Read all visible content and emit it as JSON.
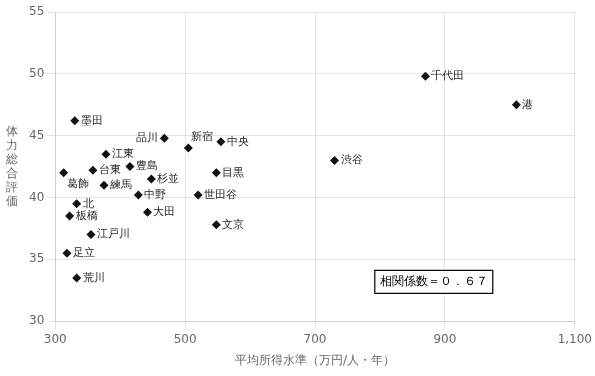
{
  "chart_data": {
    "type": "scatter",
    "x": [
      870,
      1010,
      330,
      555,
      505,
      468,
      378,
      415,
      730,
      548,
      358,
      313,
      448,
      375,
      520,
      333,
      428,
      442,
      322,
      548,
      318,
      355,
      333
    ],
    "values": [
      49.8,
      47.5,
      46.2,
      44.5,
      44.0,
      44.8,
      43.5,
      42.5,
      43.0,
      42.0,
      42.2,
      42.0,
      41.5,
      41.0,
      40.2,
      39.5,
      40.2,
      38.8,
      38.5,
      37.8,
      35.5,
      37.0,
      33.5
    ],
    "labels": [
      "千代田",
      "港",
      "墨田",
      "中央",
      "新宿",
      "品川",
      "江東",
      "豊島",
      "渋谷",
      "目黒",
      "台東",
      "葛飾",
      "杉並",
      "練馬",
      "世田谷",
      "北",
      "中野",
      "大田",
      "板橋",
      "文京",
      "足立",
      "江戸川",
      "荒川"
    ],
    "color": "#111111",
    "marker": "diamond",
    "xlabel": "平均所得水準（万円/人・年）",
    "ylabel": "体\n力\n総\n合\n評\n価",
    "annotations": [
      "相関係数＝０．６７"
    ],
    "xlim": [
      300,
      1100
    ],
    "ylim": [
      30,
      55
    ],
    "xticks": [
      300,
      500,
      700,
      900,
      {
        "value": 1100,
        "label": "1,100"
      }
    ],
    "yticks": [
      30,
      35,
      40,
      45,
      50,
      55
    ],
    "grid": true
  }
}
